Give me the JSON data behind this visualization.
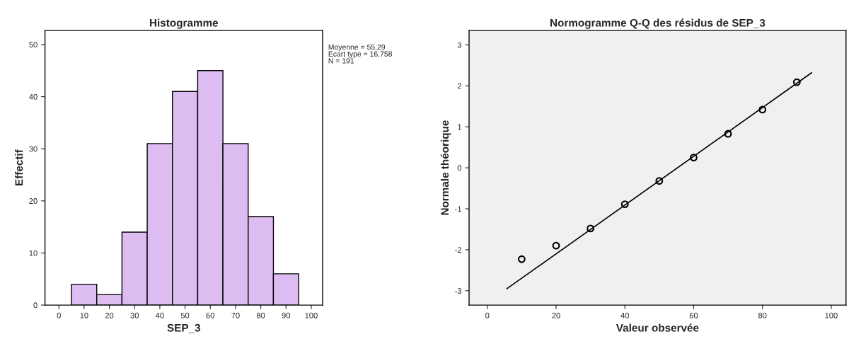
{
  "chart_data": [
    {
      "type": "histogram",
      "title": "Histogramme",
      "xlabel": "SEP_3",
      "ylabel": "Effectif",
      "bins": [
        5,
        15,
        25,
        35,
        45,
        55,
        65,
        75,
        85,
        95
      ],
      "values": [
        4,
        2,
        14,
        31,
        41,
        45,
        31,
        17,
        6
      ],
      "color": "#ddbdf1",
      "xlim": [
        -5.5,
        104.5
      ],
      "xticks": [
        0,
        10,
        20,
        30,
        40,
        50,
        60,
        70,
        80,
        90,
        100
      ],
      "ylim": [
        0,
        52.7
      ],
      "yticks": [
        0,
        10,
        20,
        30,
        40,
        50
      ],
      "grid": false,
      "annotations": [
        "Moyenne = 55,29",
        "Ecart type = 16,758",
        "N = 191"
      ]
    },
    {
      "type": "scatter",
      "title": "Normogramme Q-Q des résidus de SEP_3",
      "xlabel": "Valeur observée",
      "ylabel": "Normale théorique",
      "xlim": [
        -5.3,
        104.3
      ],
      "xticks": [
        0,
        20,
        40,
        60,
        80,
        100
      ],
      "ylim": [
        -3.35,
        3.35
      ],
      "yticks": [
        {
          "value": -3,
          "label": "-3"
        },
        {
          "value": -2,
          "label": "-2"
        },
        {
          "value": -1,
          "label": "-1"
        },
        0,
        1,
        2,
        3
      ],
      "grid": false,
      "series": [
        {
          "type": "scatter",
          "marker": "circle",
          "color": "#000000",
          "x": [
            10,
            20,
            30,
            40,
            50,
            60,
            70,
            80,
            90
          ],
          "values": [
            -2.23,
            -1.9,
            -1.48,
            -0.89,
            -0.32,
            0.25,
            0.83,
            1.42,
            2.09
          ]
        },
        {
          "type": "line",
          "line_style": "solid",
          "color": "#000000",
          "x": [
            5.7,
            94.3
          ],
          "values": [
            -2.95,
            2.32
          ]
        }
      ]
    }
  ]
}
